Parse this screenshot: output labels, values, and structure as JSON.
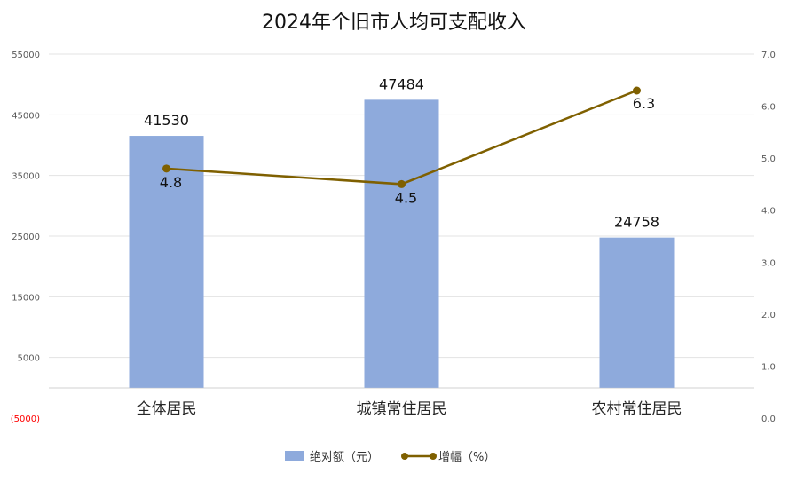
{
  "chart_data": {
    "type": "bar",
    "title": "2024年个旧市人均可支配收入",
    "categories": [
      "全体居民",
      "城镇常住居民",
      "农村常住居民"
    ],
    "series": [
      {
        "name": "绝对额（元）",
        "type": "bar",
        "axis": "left",
        "color": "#8eaadc",
        "values": [
          41530,
          47484,
          24758
        ],
        "labels": [
          "41530",
          "47484",
          "24758"
        ]
      },
      {
        "name": "增幅（%）",
        "type": "line",
        "axis": "right",
        "color": "#7f6000",
        "values": [
          4.8,
          4.5,
          6.3
        ],
        "labels": [
          "4.8",
          "4.5",
          "6.3"
        ]
      }
    ],
    "y_left": {
      "range": [
        -5000,
        55000
      ],
      "ticks": [
        55000,
        45000,
        35000,
        25000,
        15000,
        5000,
        -5000
      ],
      "tick_labels": [
        "55000",
        "45000",
        "35000",
        "25000",
        "15000",
        "5000",
        "(5000)"
      ],
      "negative_color": "#ff0000"
    },
    "y_right": {
      "range": [
        0,
        7
      ],
      "ticks": [
        7,
        6,
        5,
        4,
        3,
        2,
        1,
        0
      ],
      "tick_labels": [
        "7.0",
        "6.0",
        "5.0",
        "4.0",
        "3.0",
        "2.0",
        "1.0",
        "0.0"
      ]
    },
    "grid": true,
    "legend_position": "bottom"
  }
}
